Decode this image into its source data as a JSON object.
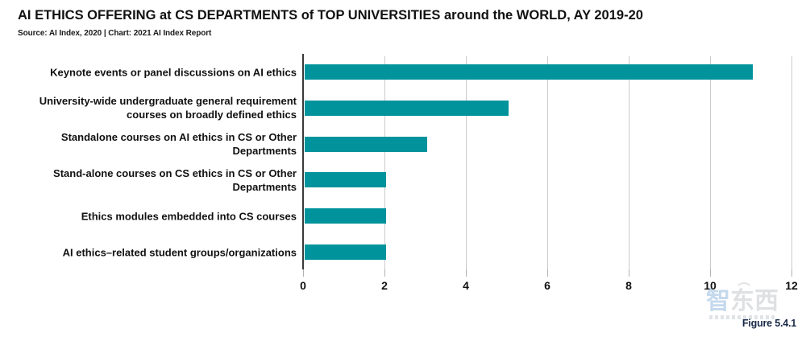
{
  "chart_data": {
    "type": "bar",
    "orientation": "horizontal",
    "title": "AI ETHICS OFFERING at CS DEPARTMENTS of TOP UNIVERSITIES around the WORLD, AY 2019-20",
    "source": "Source: AI Index, 2020 | Chart: 2021 AI Index Report",
    "categories": [
      "Keynote events or panel discussions on AI ethics",
      "University-wide undergraduate general requirement courses on broadly defined ethics",
      "Standalone courses on AI ethics in CS or Other Departments",
      "Stand-alone courses on CS ethics in CS or Other Departments",
      "Ethics modules embedded into CS courses",
      "AI ethics–related student groups/organizations"
    ],
    "values": [
      11,
      5,
      3,
      2,
      2,
      2
    ],
    "xlim": [
      0,
      12
    ],
    "xticks": [
      0,
      2,
      4,
      6,
      8,
      10,
      12
    ],
    "grid": true,
    "legend": false,
    "bar_color": "#00939B",
    "gridline_color": "#CBCBCB",
    "axis_color": "#3A3A3A"
  },
  "footer": {
    "figure_label": "Figure 5.4.1",
    "watermark_text": "智东西"
  }
}
